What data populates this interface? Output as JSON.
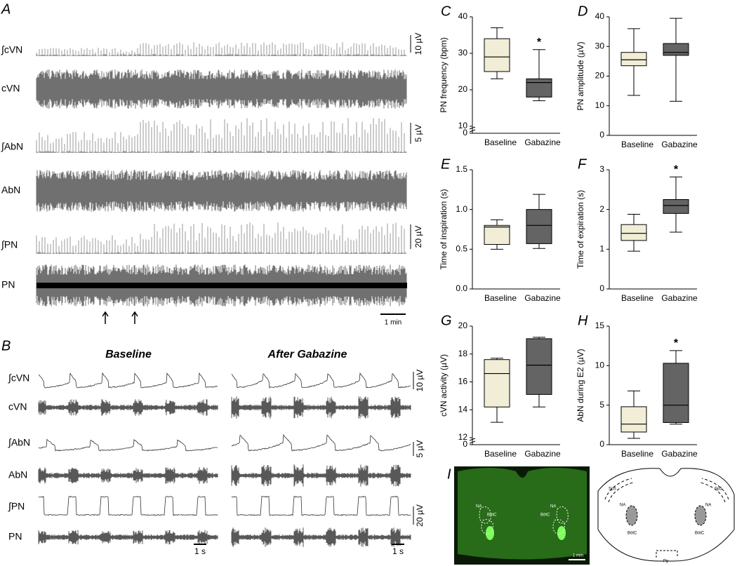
{
  "panels": {
    "A": {
      "label": "A",
      "traces": [
        "∫cVN",
        "cVN",
        "∫AbN",
        "AbN",
        "∫PN",
        "PN"
      ],
      "scale_bars": [
        "10 µV",
        "5 µV",
        "20 µV"
      ],
      "time_bar": "1 min"
    },
    "B": {
      "label": "B",
      "conditions": [
        "Baseline",
        "After Gabazine"
      ],
      "traces": [
        "∫cVN",
        "cVN",
        "∫AbN",
        "AbN",
        "∫PN",
        "PN"
      ],
      "scale_bars": [
        "10 µV",
        "5 µV",
        "20 µV"
      ],
      "time_bars": [
        "1 s",
        "1 s"
      ]
    },
    "I": {
      "label": "I",
      "photo_labels": [
        "NA",
        "BötC",
        "NA",
        "BötC",
        "1 mm"
      ],
      "diagram_labels": [
        "NA",
        "BötC",
        "NA",
        "BötC",
        "Sp5",
        "Sp5",
        "Py"
      ]
    }
  },
  "chart_data": [
    {
      "type": "box",
      "panel_label": "C",
      "ylabel": "PN frequency (bpm)",
      "categories": [
        "Baseline",
        "Gabazine"
      ],
      "boxes": [
        {
          "min": 23,
          "q1": 25,
          "median": 29,
          "q3": 34,
          "max": 37,
          "color": "#f1edd6"
        },
        {
          "min": 17,
          "q1": 18,
          "median": 22,
          "q3": 23,
          "max": 31,
          "color": "#646464",
          "annotation": "*"
        }
      ],
      "ylim": [
        10,
        40
      ],
      "yticks": [
        10,
        20,
        30,
        40
      ],
      "ybreak_tick": 0
    },
    {
      "type": "box",
      "panel_label": "D",
      "ylabel": "PN amplitude (µV)",
      "categories": [
        "Baseline",
        "Gabazine"
      ],
      "boxes": [
        {
          "min": 13.5,
          "q1": 23.5,
          "median": 25.5,
          "q3": 28,
          "max": 36,
          "color": "#f1edd6"
        },
        {
          "min": 11.5,
          "q1": 27,
          "median": 28,
          "q3": 31,
          "max": 39.5,
          "color": "#646464"
        }
      ],
      "ylim": [
        0,
        40
      ],
      "yticks": [
        0,
        10,
        20,
        30,
        40
      ]
    },
    {
      "type": "box",
      "panel_label": "E",
      "ylabel": "Time of inspiration (s)",
      "categories": [
        "Baseline",
        "Gabazine"
      ],
      "boxes": [
        {
          "min": 0.5,
          "q1": 0.56,
          "median": 0.78,
          "q3": 0.8,
          "max": 0.87,
          "color": "#f1edd6"
        },
        {
          "min": 0.51,
          "q1": 0.57,
          "median": 0.8,
          "q3": 1.0,
          "max": 1.19,
          "color": "#646464"
        }
      ],
      "ylim": [
        0,
        1.5
      ],
      "yticks": [
        {
          "value": 0,
          "label": "0.0"
        },
        {
          "value": 0.5,
          "label": "0.5"
        },
        {
          "value": 1,
          "label": "1.0"
        },
        {
          "value": 1.5,
          "label": "1.5"
        }
      ]
    },
    {
      "type": "box",
      "panel_label": "F",
      "ylabel": "Time of expiration (s)",
      "categories": [
        "Baseline",
        "Gabazine"
      ],
      "boxes": [
        {
          "min": 0.95,
          "q1": 1.22,
          "median": 1.4,
          "q3": 1.62,
          "max": 1.88,
          "color": "#f1edd6"
        },
        {
          "min": 1.43,
          "q1": 1.9,
          "median": 2.1,
          "q3": 2.25,
          "max": 2.82,
          "color": "#646464",
          "annotation": "*"
        }
      ],
      "ylim": [
        0,
        3
      ],
      "yticks": [
        0,
        1,
        2,
        3
      ]
    },
    {
      "type": "box",
      "panel_label": "G",
      "ylabel": "cVN activity (µV)",
      "categories": [
        "Baseline",
        "Gabazine"
      ],
      "boxes": [
        {
          "min": 13.1,
          "q1": 14.2,
          "median": 16.6,
          "q3": 17.6,
          "max": 17.7,
          "color": "#f1edd6"
        },
        {
          "min": 14.2,
          "q1": 15.1,
          "median": 17.2,
          "q3": 19.1,
          "max": 19.2,
          "color": "#646464"
        }
      ],
      "ylim": [
        12,
        20
      ],
      "yticks": [
        12,
        14,
        16,
        18,
        20
      ],
      "ybreak_tick": 0
    },
    {
      "type": "box",
      "panel_label": "H",
      "ylabel": "AbN during E2 (µV)",
      "categories": [
        "Baseline",
        "Gabazine"
      ],
      "boxes": [
        {
          "min": 0.8,
          "q1": 1.6,
          "median": 2.6,
          "q3": 4.8,
          "max": 6.8,
          "color": "#f1edd6"
        },
        {
          "min": 2.6,
          "q1": 2.8,
          "median": 5,
          "q3": 10.3,
          "max": 11.9,
          "color": "#646464",
          "annotation": "*"
        }
      ],
      "ylim": [
        0,
        15
      ],
      "yticks": [
        0,
        5,
        10,
        15
      ]
    }
  ]
}
